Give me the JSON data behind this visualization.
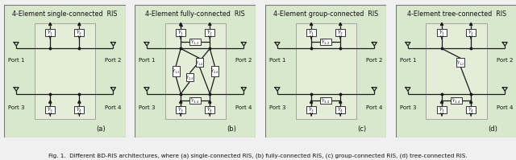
{
  "figure_bg": "#f0f0f0",
  "panel_bg": "#d8e8cc",
  "inner_bg": "#e4edd8",
  "line_color": "#1a1a1a",
  "component_color": "#333333",
  "text_color": "#111111",
  "caption_color": "#111111",
  "panels": [
    {
      "title": "4-Element single-connected  RIS",
      "label": "(a)"
    },
    {
      "title": "4-Element fully-connected  RIS",
      "label": "(b)"
    },
    {
      "title": "4-Element group-connected  RIS",
      "label": "(c)"
    },
    {
      "title": "4-Element tree-connected  RIS",
      "label": "(d)"
    }
  ],
  "caption": "Fig. 1.  Different BD-RIS architectures, where (a) single-connected RIS, (b) fully-connected RIS, (c) group-connected RIS, (d) tree-connected RIS."
}
